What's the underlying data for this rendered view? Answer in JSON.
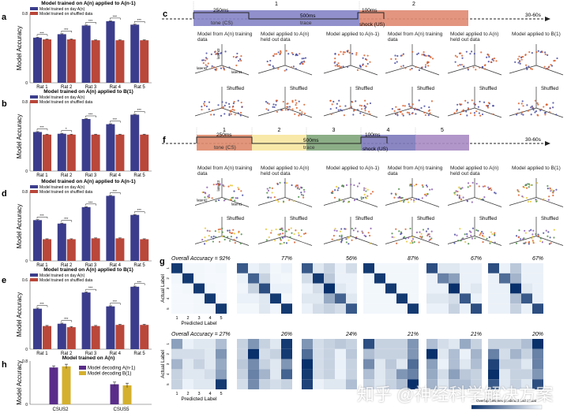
{
  "panel_letters": {
    "a": "a",
    "b": "b",
    "c": "c",
    "d": "d",
    "e": "e",
    "f": "f",
    "g": "g",
    "h": "h"
  },
  "chart_data": [
    {
      "id": "a",
      "type": "bar",
      "title": "Model trained on A(n) applied to A(n-1)",
      "ylabel": "Model Accuracy",
      "ylim": [
        0,
        0.8
      ],
      "yticks": [
        "0",
        "0.8"
      ],
      "categories": [
        "Rat 1",
        "Rat 2",
        "Rat 3",
        "Rat 4",
        "Rat 5"
      ],
      "series": [
        {
          "name": "Model trained on day A(n)",
          "color": "#3b3d8c",
          "values": [
            0.52,
            0.56,
            0.66,
            0.71,
            0.67
          ]
        },
        {
          "name": "Model trained on shuffled data",
          "color": "#b9473a",
          "values": [
            0.5,
            0.5,
            0.49,
            0.49,
            0.49
          ]
        }
      ],
      "significance": [
        "***",
        "***",
        "***",
        "***",
        "***"
      ]
    },
    {
      "id": "b",
      "type": "bar",
      "title": "Model trained on A(n) applied to B(1)",
      "ylabel": "Model Accuracy",
      "ylim": [
        0,
        0.8
      ],
      "yticks": [
        "0",
        "0.8"
      ],
      "categories": [
        "Rat 1",
        "Rat 2",
        "Rat 3",
        "Rat 4",
        "Rat 5"
      ],
      "series": [
        {
          "name": "Model trained on day A(n)",
          "color": "#3b3d8c",
          "values": [
            0.45,
            0.43,
            0.6,
            0.54,
            0.65
          ]
        },
        {
          "name": "Model trained on shuffled data",
          "color": "#b9473a",
          "values": [
            0.42,
            0.42,
            0.42,
            0.42,
            0.42
          ]
        }
      ],
      "significance": [
        "***",
        "*",
        "***",
        "***",
        "***"
      ]
    },
    {
      "id": "d",
      "type": "bar",
      "title": "Model trained on A(n) applied to A(n-1)",
      "ylabel": "Model Accuracy",
      "ylim": [
        0,
        0.8
      ],
      "yticks": [
        "0",
        "0.8"
      ],
      "categories": [
        "Rat 1",
        "Rat 2",
        "Rat 3",
        "Rat 4",
        "Rat 5"
      ],
      "series": [
        {
          "name": "Model trained on day A(n)",
          "color": "#3b3d8c",
          "values": [
            0.47,
            0.43,
            0.62,
            0.75,
            0.53
          ]
        },
        {
          "name": "Model trained on shuffled data",
          "color": "#b9473a",
          "values": [
            0.25,
            0.25,
            0.26,
            0.26,
            0.25
          ]
        }
      ],
      "significance": [
        "***",
        "***",
        "***",
        "***",
        "***"
      ]
    },
    {
      "id": "e",
      "type": "bar",
      "title": "Model trained on A(n) applied to B(1)",
      "ylabel": "Model Accuracy",
      "ylim": [
        0,
        0.6
      ],
      "yticks": [
        "0",
        "0.6"
      ],
      "categories": [
        "Rat 1",
        "Rat 2",
        "Rat 3",
        "Rat 4",
        "Rat 5"
      ],
      "series": [
        {
          "name": "Model trained on day A(n)",
          "color": "#3b3d8c",
          "values": [
            0.35,
            0.22,
            0.49,
            0.37,
            0.54
          ]
        },
        {
          "name": "Model trained on shuffled data",
          "color": "#b9473a",
          "values": [
            0.2,
            0.19,
            0.2,
            0.21,
            0.21
          ]
        }
      ],
      "significance": [
        "***",
        "***",
        "***",
        "***",
        "***"
      ]
    },
    {
      "id": "h",
      "type": "bar",
      "title": "Model trained on A(n)",
      "ylabel": "Model Accuracy",
      "ylim": [
        0,
        0.8
      ],
      "yticks": [
        "0",
        "0.8"
      ],
      "categories": [
        "CSUS2",
        "CSUS5"
      ],
      "series": [
        {
          "name": "Model decoding A(n-1)",
          "color": "#5a2d8a",
          "values": [
            0.68,
            0.37
          ],
          "errors": [
            0.03,
            0.04
          ]
        },
        {
          "name": "Model decoding B(1)",
          "color": "#d4b02e",
          "values": [
            0.7,
            0.35
          ],
          "errors": [
            0.04,
            0.04
          ]
        }
      ],
      "significance": []
    },
    {
      "id": "g",
      "type": "heatmap",
      "xlabel": "Predicted Label",
      "ylabel": "Actual Label",
      "ticks": [
        "1",
        "2",
        "3",
        "4",
        "5"
      ],
      "colorbar_label": "Overlap between predicted and actual",
      "top_titles": [
        "Overall Accuracy = 92%",
        "77%",
        "56%",
        "87%",
        "67%",
        "67%"
      ],
      "bottom_titles": [
        "Overall Accuracy = 27%",
        "26%",
        "24%",
        "21%",
        "21%",
        "20%"
      ],
      "top": [
        [
          [
            0.95,
            0.02,
            0.02,
            0.01,
            0.02
          ],
          [
            0.02,
            0.95,
            0.02,
            0.01,
            0.01
          ],
          [
            0.01,
            0.02,
            0.95,
            0.02,
            0.01
          ],
          [
            0.01,
            0.01,
            0.02,
            0.95,
            0.01
          ],
          [
            0.01,
            0.01,
            0.02,
            0.02,
            0.95
          ]
        ],
        [
          [
            0.8,
            0.05,
            0.1,
            0.02,
            0.05
          ],
          [
            0.05,
            0.75,
            0.2,
            0.03,
            0.02
          ],
          [
            0.03,
            0.2,
            0.85,
            0.05,
            0.05
          ],
          [
            0.05,
            0.05,
            0.1,
            0.95,
            0.02
          ],
          [
            0.02,
            0.02,
            0.1,
            0.03,
            0.95
          ]
        ],
        [
          [
            0.8,
            0.1,
            0.2,
            0.05,
            0.15
          ],
          [
            0.15,
            0.95,
            0.25,
            0.05,
            0.05
          ],
          [
            0.05,
            0.15,
            1,
            0.1,
            0.05
          ],
          [
            0.1,
            0.1,
            0.4,
            0.75,
            0.1
          ],
          [
            0.05,
            0.15,
            0.2,
            0.15,
            0.8
          ]
        ],
        [
          [
            0.95,
            0.02,
            0.02,
            0.02,
            0.02
          ],
          [
            0.02,
            0.95,
            0.02,
            0.02,
            0.02
          ],
          [
            0.02,
            0.02,
            0.95,
            0.02,
            0.02
          ],
          [
            0.02,
            0.02,
            0.02,
            0.95,
            0.02
          ],
          [
            0.02,
            0.02,
            0.02,
            0.02,
            0.95
          ]
        ],
        [
          [
            0.85,
            0.1,
            0.1,
            0.05,
            0.05
          ],
          [
            0.05,
            0.6,
            0.45,
            0.05,
            0.05
          ],
          [
            0.05,
            0.05,
            1,
            0.05,
            0.1
          ],
          [
            0.1,
            0.1,
            0.15,
            0.8,
            0.05
          ],
          [
            0.05,
            0.05,
            0.2,
            0.05,
            0.85
          ]
        ],
        [
          [
            0.85,
            0.05,
            0.25,
            0.05,
            0.05
          ],
          [
            0.05,
            0.7,
            0.35,
            0.05,
            0.05
          ],
          [
            0.05,
            0.05,
            1,
            0.1,
            0.05
          ],
          [
            0.05,
            0.05,
            0.3,
            0.8,
            0.05
          ],
          [
            0.05,
            0.05,
            0.2,
            0.05,
            0.85
          ]
        ]
      ],
      "bottom": [
        [
          [
            0.45,
            0.05,
            0.1,
            0.1,
            0.3
          ],
          [
            0.15,
            0.15,
            0.15,
            0.1,
            0.5
          ],
          [
            0.35,
            0.1,
            0.2,
            0.1,
            0.4
          ],
          [
            0.2,
            0.1,
            0.1,
            0.15,
            0.45
          ],
          [
            0.2,
            0.05,
            0.1,
            0.1,
            0.95
          ]
        ],
        [
          [
            0.2,
            0.5,
            0.2,
            0.1,
            0.95
          ],
          [
            0.2,
            1,
            0.15,
            0.2,
            0.95
          ],
          [
            0.25,
            0.55,
            0.2,
            0.1,
            0.5
          ],
          [
            0.2,
            0.6,
            0.35,
            0.1,
            0.75
          ],
          [
            0.15,
            0.55,
            0.2,
            0.15,
            0.2
          ]
        ],
        [
          [
            0.5,
            0.15,
            0.2,
            0.25,
            0.2
          ],
          [
            0.7,
            0.15,
            0.2,
            0.05,
            0.25
          ],
          [
            1,
            0.15,
            0.2,
            0.05,
            0.2
          ],
          [
            0.95,
            0.15,
            0.2,
            0.05,
            0.2
          ],
          [
            0.9,
            0.05,
            0.1,
            0.1,
            0.3
          ]
        ],
        [
          [
            0.85,
            0.2,
            0.2,
            0.2,
            0.5
          ],
          [
            0.3,
            0.2,
            0.2,
            0.2,
            0.5
          ],
          [
            0.55,
            0.1,
            0.25,
            0.1,
            0.7
          ],
          [
            0.3,
            0.1,
            0.2,
            0.5,
            0.6
          ],
          [
            0.2,
            0.1,
            0.2,
            0.3,
            1
          ]
        ],
        [
          [
            0.3,
            0.15,
            0.1,
            0.4,
            0.2
          ],
          [
            1,
            0.1,
            0.3,
            0.05,
            0.35
          ],
          [
            0.45,
            0.05,
            0.3,
            0.1,
            0.3
          ],
          [
            0.4,
            0.15,
            0.45,
            0.25,
            0.2
          ],
          [
            0.35,
            0.1,
            0.3,
            0.3,
            0.2
          ]
        ],
        [
          [
            0.2,
            0.2,
            0.2,
            0.3,
            1
          ],
          [
            0.6,
            0.15,
            0.35,
            0.2,
            0.6
          ],
          [
            0.9,
            0.2,
            0.2,
            0.1,
            0.6
          ],
          [
            1,
            0.1,
            0.2,
            0.2,
            0.5
          ],
          [
            0.8,
            0.1,
            0.2,
            0.1,
            0.85
          ]
        ]
      ]
    }
  ],
  "timeline_c": {
    "segments": [
      "1",
      "2"
    ],
    "colors": [
      "#8584c6",
      "#e08a72"
    ],
    "t250": "250ms",
    "tone": "tone (CS)",
    "t500": "500ms",
    "trace": "trace",
    "t100": "100ms",
    "shock": "shock (US)",
    "iti": "30-60s"
  },
  "timeline_f": {
    "segments": [
      "1",
      "2",
      "3",
      "4",
      "5"
    ],
    "colors": [
      "#de8a6c",
      "#f7e7a0",
      "#7fa57a",
      "#7c79bb",
      "#a98bc4"
    ],
    "t250": "250ms",
    "tone": "tone (CS)",
    "t500": "500ms",
    "trace": "trace",
    "t100": "100ms",
    "shock": "shock (US)",
    "iti": "30-60s"
  },
  "scatter_captions": [
    "Model from A(n) training data",
    "Model applied to A(n) held out data",
    "Model applied to A(n-1)",
    "Model from A(n) training data",
    "Model applied to A(n) held out data",
    "Model applied to B(1)"
  ],
  "shuffled_label": "Shuffled",
  "axis_labels": {
    "latent1": "latent1",
    "latent2": "latent2",
    "latent3": "latent3"
  },
  "scatter_colors_c": [
    "#4a4da0",
    "#d9622f"
  ],
  "scatter_colors_f": [
    "#d9622f",
    "#e8c83a",
    "#4f8f4a",
    "#4a4da0",
    "#8e5fb0"
  ],
  "watermark": "知乎 @神经科学解决方案"
}
